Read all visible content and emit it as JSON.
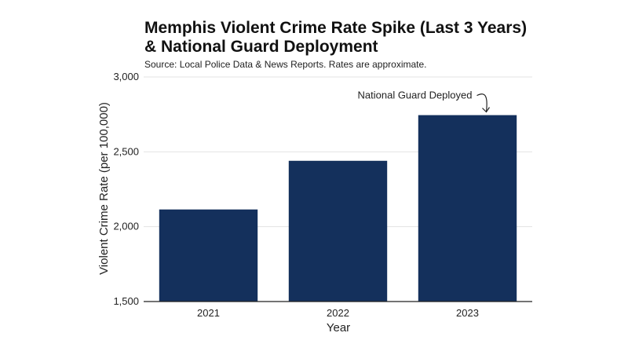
{
  "chart_data": {
    "type": "bar",
    "title_lines": [
      "Memphis Violent Crime Rate Spike (Last 3 Years)",
      "& National Guard Deployment"
    ],
    "subtitle": "Source: Local Police Data & News Reports. Rates are approximate.",
    "xlabel": "Year",
    "ylabel": "Violent Crime Rate (per 100,000)",
    "categories": [
      "2021",
      "2022",
      "2023"
    ],
    "values": [
      2115,
      2440,
      2745
    ],
    "ylim": [
      1500,
      3000
    ],
    "yticks": [
      1500,
      2000,
      2500,
      3000
    ],
    "ytick_labels": [
      "1,500",
      "2,000",
      "2,500",
      "3,000"
    ],
    "grid": "horizontal",
    "bar_color": "#14305c",
    "annotation": {
      "text": "National Guard Deployed",
      "category": "2023"
    }
  }
}
